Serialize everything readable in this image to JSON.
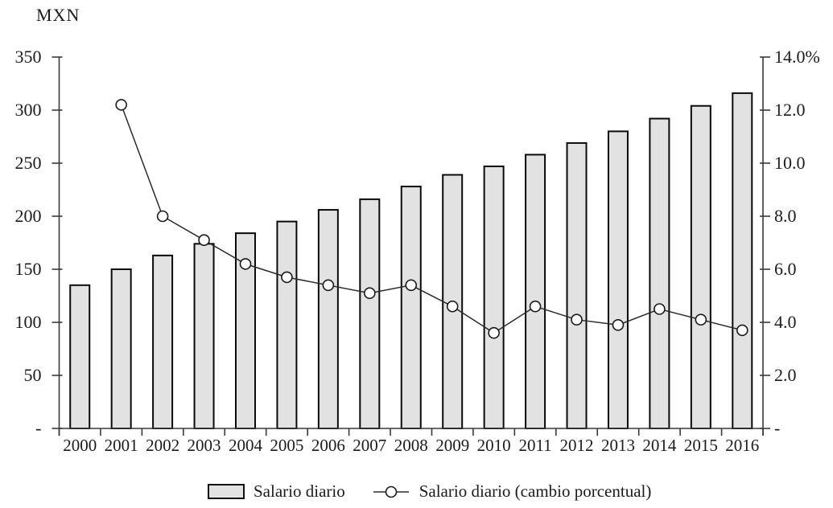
{
  "chart_data": {
    "type": "combo-bar-line",
    "title": "",
    "left_axis": {
      "title": "MXN",
      "min": 0,
      "max": 350,
      "tick_step": 50,
      "tick_values": [
        0,
        50,
        100,
        150,
        200,
        250,
        300,
        350
      ],
      "tick_labels": [
        "-",
        "50",
        "100",
        "150",
        "200",
        "250",
        "300",
        "350"
      ]
    },
    "right_axis": {
      "title": "",
      "min": 0,
      "max": 14,
      "tick_step": 2,
      "tick_values": [
        0,
        2,
        4,
        6,
        8,
        10,
        12,
        14
      ],
      "tick_labels": [
        "-",
        "2.0",
        "4.0",
        "6.0",
        "8.0",
        "10.0",
        "12.0",
        "14.0%"
      ]
    },
    "categories": [
      "2000",
      "2001",
      "2002",
      "2003",
      "2004",
      "2005",
      "2006",
      "2007",
      "2008",
      "2009",
      "2010",
      "2011",
      "2012",
      "2013",
      "2014",
      "2015",
      "2016"
    ],
    "series": [
      {
        "name": "Salario diario",
        "type": "bar",
        "axis": "left",
        "values": [
          135,
          150,
          163,
          174,
          184,
          195,
          206,
          216,
          228,
          239,
          247,
          258,
          269,
          280,
          292,
          304,
          316
        ]
      },
      {
        "name": "Salario diario (cambio porcentual)",
        "type": "line",
        "axis": "right",
        "values": [
          null,
          12.2,
          8.0,
          7.1,
          6.2,
          5.7,
          5.4,
          5.1,
          5.4,
          4.6,
          3.6,
          4.6,
          4.1,
          3.9,
          4.5,
          4.1,
          3.7
        ]
      }
    ],
    "legend": {
      "position": "bottom",
      "bar_label": "Salario diario",
      "line_label": "Salario diario (cambio porcentual)"
    },
    "grid": false,
    "colors": {
      "bar_fill": "#e2e2e2",
      "bar_stroke": "#0a0a0a",
      "line": "#2b2b2b",
      "marker_fill": "#ffffff",
      "marker_stroke": "#1a1a1a",
      "axis": "#3a3a3a",
      "text": "#1c1c1c"
    }
  }
}
